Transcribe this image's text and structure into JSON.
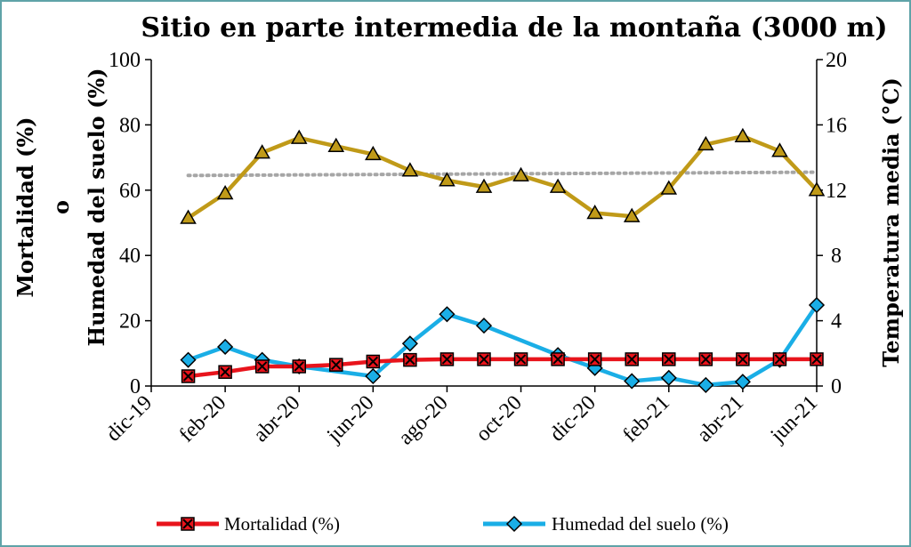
{
  "chart_data": {
    "type": "line",
    "title": "Sitio en parte intermedia de la montaña (3000 m)",
    "ylabel_left_line1": "Mortalidad (%)",
    "ylabel_left_line2": "o",
    "ylabel_left_line3": "Humedad del suelo (%)",
    "ylabel_right": "Temperatura  media (°C)",
    "x_tick_labels": [
      "dic-19",
      "feb-20",
      "abr-20",
      "jun-20",
      "ago-20",
      "oct-20",
      "dic-20",
      "feb-21",
      "abr-21",
      "jun-21"
    ],
    "ylim_left": [
      0,
      100
    ],
    "yticks_left": [
      0,
      20,
      40,
      60,
      80,
      100
    ],
    "ylim_right": [
      0,
      20
    ],
    "yticks_right": [
      0,
      4,
      8,
      12,
      16,
      20
    ],
    "x_months": [
      1,
      2,
      3,
      4,
      5,
      6,
      7,
      8,
      9,
      10,
      11,
      12,
      13,
      14,
      15,
      16,
      17,
      18
    ],
    "series": [
      {
        "name": "Mortalidad (%)",
        "axis": "left",
        "color": "#e8141c",
        "marker": "x-square",
        "x": [
          1,
          2,
          3,
          4,
          5,
          6,
          7,
          8,
          9,
          10,
          11,
          12,
          13,
          14,
          15,
          16,
          17,
          18
        ],
        "values": [
          3,
          4.3,
          6,
          6,
          6.5,
          7.5,
          8,
          8.2,
          8.2,
          8.2,
          8.2,
          8.2,
          8.2,
          8.2,
          8.2,
          8.2,
          8.2,
          8.2
        ]
      },
      {
        "name": "Humedad del suelo (%)",
        "axis": "left",
        "color": "#1aaee6",
        "marker": "diamond",
        "x": [
          1,
          2,
          3,
          4,
          6,
          7,
          8,
          9,
          11,
          12,
          13,
          14,
          15,
          16,
          17,
          18
        ],
        "values": [
          8,
          12,
          8,
          6,
          3,
          13,
          22,
          18.5,
          9.5,
          5.5,
          1.5,
          2.5,
          0.3,
          1.3,
          8,
          24.8
        ]
      },
      {
        "axis": "right",
        "color": "#c09a18",
        "marker": "triangle",
        "x": [
          1,
          2,
          3,
          4,
          5,
          6,
          7,
          8,
          9,
          10,
          11,
          12,
          13,
          14,
          15,
          16,
          17,
          18
        ],
        "values": [
          10.3,
          11.8,
          14.3,
          15.2,
          14.7,
          14.2,
          13.2,
          12.6,
          12.2,
          12.9,
          12.2,
          10.6,
          10.4,
          12.1,
          14.8,
          15.3,
          14.4,
          12
        ]
      },
      {
        "axis": "left",
        "color": "#a6a6a6",
        "style": "dotted",
        "x": [
          1,
          18
        ],
        "values": [
          64.5,
          65.5
        ]
      }
    ],
    "legend": [
      "Mortalidad (%)",
      "Humedad del suelo (%)"
    ],
    "legend_position": "bottom",
    "grid": false
  }
}
